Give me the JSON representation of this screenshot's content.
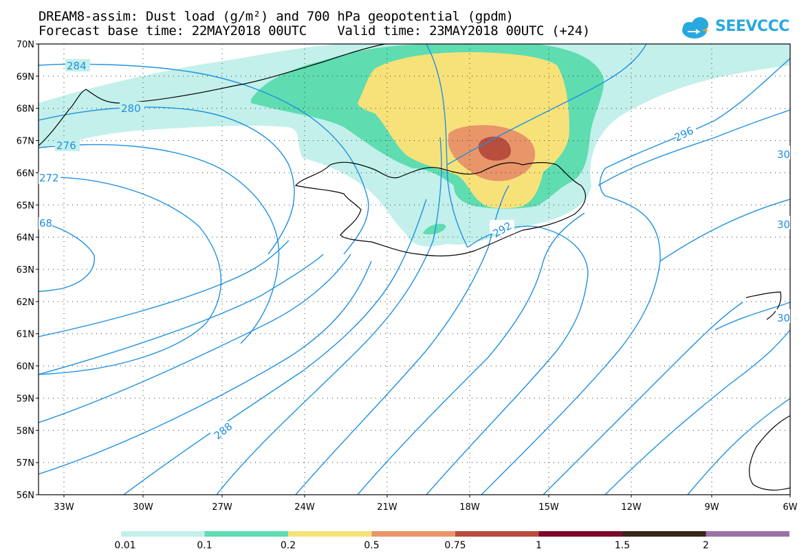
{
  "title": {
    "line1": "DREAM8-assim: Dust load (g/m²) and 700 hPa geopotential (gpdm)",
    "line2": "Forecast base time: 22MAY2018 00UTC    Valid time: 23MAY2018 00UTC (+24)"
  },
  "logo": {
    "text": "SEEVCCC",
    "icon": "cloud-icon",
    "color": "#29a8e0"
  },
  "axes": {
    "lat_labels": [
      "70N",
      "69N",
      "68N",
      "67N",
      "66N",
      "65N",
      "64N",
      "63N",
      "62N",
      "61N",
      "60N",
      "59N",
      "58N",
      "57N",
      "56N"
    ],
    "lon_labels": [
      "33W",
      "30W",
      "27W",
      "24W",
      "21W",
      "18W",
      "15W",
      "12W",
      "9W",
      "6W"
    ]
  },
  "contours": {
    "color": "#1e90e0",
    "labels": [
      "284",
      "280",
      "276",
      "272",
      "68",
      "288",
      "292",
      "296",
      "30",
      "30",
      "30"
    ]
  },
  "colorbar": {
    "colors": [
      "#c3f0ea",
      "#5fdcb0",
      "#f7e27a",
      "#e8956a",
      "#b84e3e",
      "#7b0a2a",
      "#3b2418",
      "#9a72a8"
    ],
    "labels": [
      "0.01",
      "0.1",
      "0.2",
      "0.5",
      "0.75",
      "1",
      "1.5",
      "2"
    ]
  }
}
